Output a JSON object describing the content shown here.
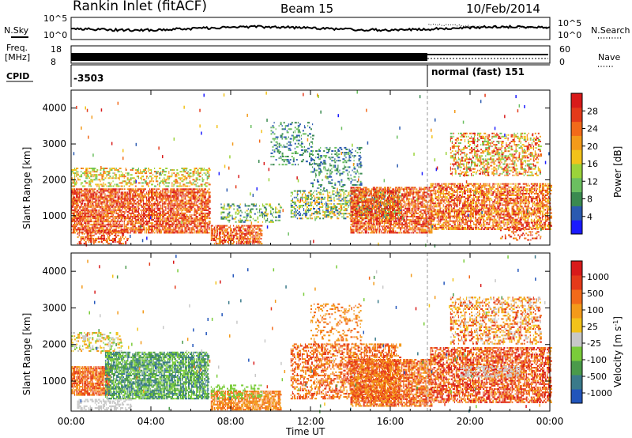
{
  "header": {
    "title": "Rankin Inlet (fitACF)",
    "beam": "Beam 15",
    "date": "10/Feb/2014"
  },
  "strips": {
    "nsky_label": "N.Sky",
    "nsearch_label": "N.Search",
    "nsky_ticks": [
      "10^5",
      "10^0"
    ],
    "nsearch_ticks": [
      "10^5",
      "10^0"
    ],
    "freq_label_1": "Freq.",
    "freq_label_2": "[MHz]",
    "freq_ticks": [
      "18",
      "8"
    ],
    "nave_label": "Nave",
    "nave_ticks": [
      "60",
      "0"
    ],
    "cpid_label": "CPID",
    "cpid_left": "-3503",
    "cpid_right": "normal (fast) 151"
  },
  "panels": {
    "ylabel": "Slant Range [km]",
    "yticks": [
      "4000",
      "3000",
      "2000",
      "1000"
    ],
    "xticks": [
      "00:00",
      "04:00",
      "08:00",
      "12:00",
      "16:00",
      "20:00",
      "00:00"
    ],
    "xlabel": "Time UT"
  },
  "colorbars": {
    "power": {
      "label": "Power [dB]",
      "ticks": [
        "28",
        "24",
        "20",
        "16",
        "12",
        "8",
        "4"
      ],
      "colors": [
        "#1a1aff",
        "#2a5ab0",
        "#3a8a50",
        "#6bbf60",
        "#9bd33a",
        "#f2c21a",
        "#f39a1a",
        "#f26a1a",
        "#e43a1a",
        "#d81a1a"
      ]
    },
    "velocity": {
      "label": "Velocity [m s^-1]",
      "ticks": [
        "1000",
        "500",
        "100",
        "25",
        "-25",
        "-100",
        "-500",
        "-1000"
      ],
      "colors": [
        "#2255bb",
        "#3a7a8a",
        "#4a9a4a",
        "#7acc3a",
        "#c8c8c8",
        "#f2c21a",
        "#f39a1a",
        "#f26a1a",
        "#e43a1a",
        "#d81a1a"
      ]
    }
  },
  "chart_data": [
    {
      "type": "heatmap",
      "title": "Power",
      "xlabel": "Time UT",
      "ylabel": "Slant Range [km]",
      "x_range": [
        "00:00",
        "24:00"
      ],
      "ylim": [
        180,
        4500
      ],
      "colorbar_label": "Power [dB]",
      "colorbar_range": [
        0,
        30
      ],
      "colorbar_ticks": [
        4,
        8,
        12,
        16,
        20,
        24,
        28
      ]
    },
    {
      "type": "heatmap",
      "title": "Velocity",
      "xlabel": "Time UT",
      "ylabel": "Slant Range [km]",
      "x_range": [
        "00:00",
        "24:00"
      ],
      "ylim": [
        180,
        4500
      ],
      "colorbar_label": "Velocity [m s^-1]",
      "colorbar_ticks": [
        1000,
        500,
        100,
        25,
        -25,
        -100,
        -500,
        -1000
      ]
    }
  ]
}
